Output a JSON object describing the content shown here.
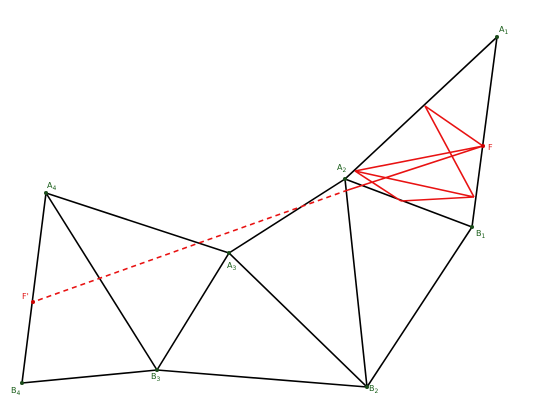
{
  "points": [
    {
      "name": "A",
      "sub": "1"
    },
    {
      "name": "A",
      "sub": "2"
    },
    {
      "name": "A",
      "sub": "3"
    },
    {
      "name": "A",
      "sub": "4"
    },
    {
      "name": "B",
      "sub": "1"
    },
    {
      "name": "B",
      "sub": "2"
    },
    {
      "name": "B",
      "sub": "3"
    },
    {
      "name": "B",
      "sub": "4"
    },
    {
      "name": "F"
    },
    {
      "name": "F'"
    }
  ]
}
